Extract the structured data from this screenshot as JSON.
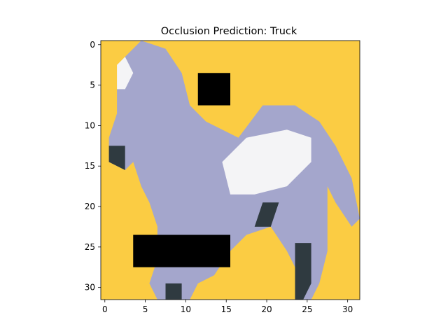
{
  "chart_data": {
    "type": "heatmap",
    "title": "Occlusion Prediction: Truck",
    "xlabel": "",
    "ylabel": "",
    "grid": false,
    "image_size": [
      32,
      32
    ],
    "xlim": [
      -0.5,
      31.5
    ],
    "ylim": [
      31.5,
      -0.5
    ],
    "x_ticks": [
      0,
      5,
      10,
      15,
      20,
      25,
      30
    ],
    "y_ticks": [
      0,
      5,
      10,
      15,
      20,
      25,
      30
    ],
    "background_color": "#fbcc43",
    "colors": {
      "horse_light": "#f4f4f6",
      "horse_mid": "#a4a6cc",
      "horse_dark": "#6c7096",
      "shadow": "#2f3a40",
      "occluder": "#000000"
    },
    "occlusion_patches": [
      {
        "row0": 4,
        "row1": 7,
        "col0": 12,
        "col1": 15
      },
      {
        "row0": 24,
        "row1": 27,
        "col0": 4,
        "col1": 15
      }
    ],
    "image_subject": "horse"
  }
}
